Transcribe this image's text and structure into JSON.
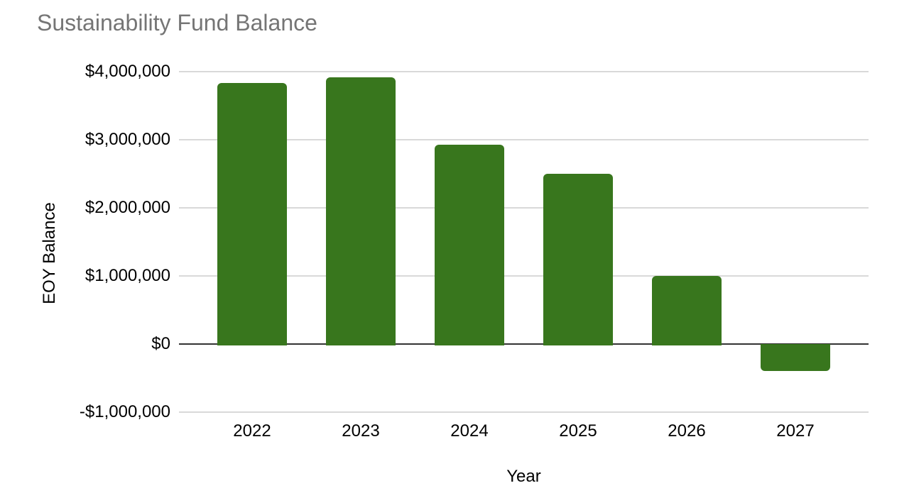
{
  "chart_data": {
    "type": "bar",
    "title": "Sustainability Fund Balance",
    "xlabel": "Year",
    "ylabel": "EOY Balance",
    "categories": [
      "2022",
      "2023",
      "2024",
      "2025",
      "2026",
      "2027"
    ],
    "values": [
      3830000,
      3920000,
      2930000,
      2500000,
      1000000,
      -380000
    ],
    "ylim": [
      -1000000,
      4000000
    ],
    "ytick_step": 1000000,
    "yticks": [
      {
        "value": 4000000,
        "label": "$4,000,000"
      },
      {
        "value": 3000000,
        "label": "$3,000,000"
      },
      {
        "value": 2000000,
        "label": "$2,000,000"
      },
      {
        "value": 1000000,
        "label": "$1,000,000"
      },
      {
        "value": 0,
        "label": "$0"
      },
      {
        "value": -1000000,
        "label": "-$1,000,000"
      }
    ],
    "grid": true,
    "legend_position": "none",
    "colors": {
      "bar": "#38761d",
      "title_text": "#757575",
      "gridline": "#d9d9d9",
      "zero_line": "#333333",
      "tick_text": "#000000"
    }
  }
}
